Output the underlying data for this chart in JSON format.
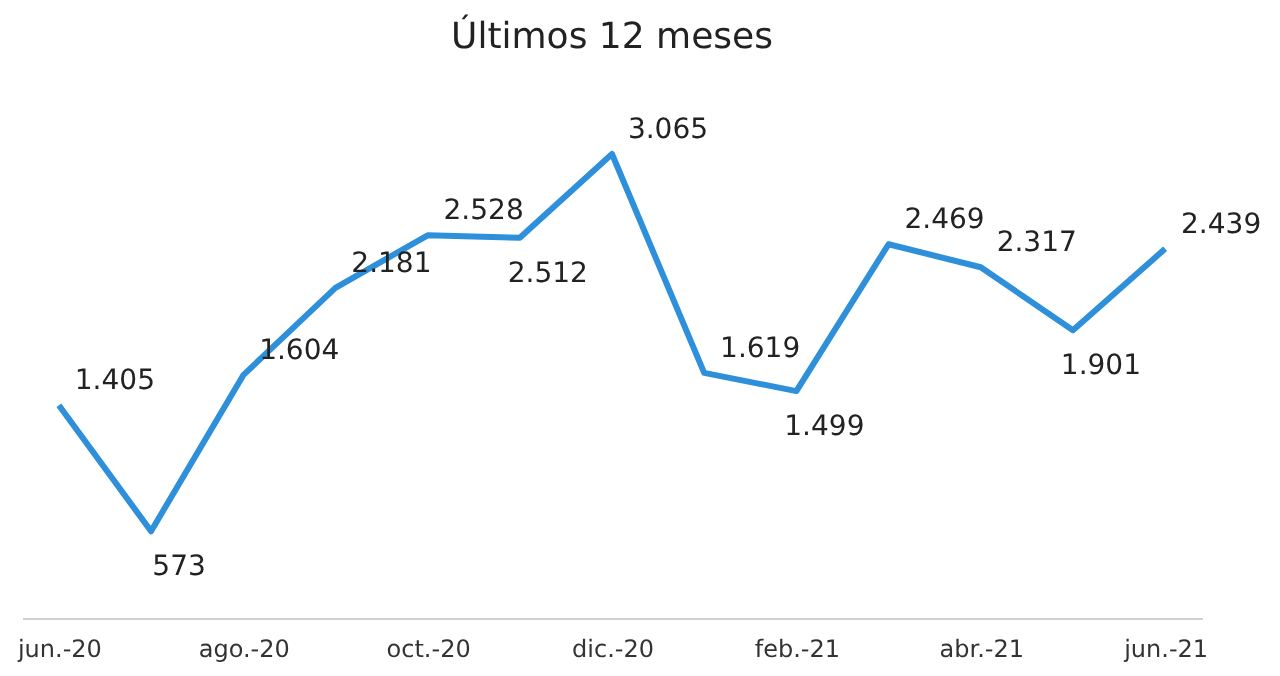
{
  "chart_data": {
    "type": "line",
    "title": "Últimos 12 meses",
    "categories": [
      "jun.-20",
      null,
      "ago.-20",
      null,
      "oct.-20",
      null,
      "dic.-20",
      null,
      "feb.-21",
      null,
      "abr.-21",
      null,
      "jun.-21"
    ],
    "series": [
      {
        "color": "#2e8fdb",
        "values": [
          1405,
          573,
          1604,
          2181,
          2528,
          2512,
          3065,
          1619,
          1499,
          2469,
          2317,
          1901,
          2439
        ],
        "value_labels": [
          "1.405",
          "573",
          "1.604",
          "2.181",
          "2.528",
          "2.512",
          "3.065",
          "1.619",
          "1.499",
          "2.469",
          "2.317",
          "1.901",
          "2.439"
        ]
      }
    ],
    "grid": false,
    "marker": "none",
    "line_style": "solid"
  }
}
